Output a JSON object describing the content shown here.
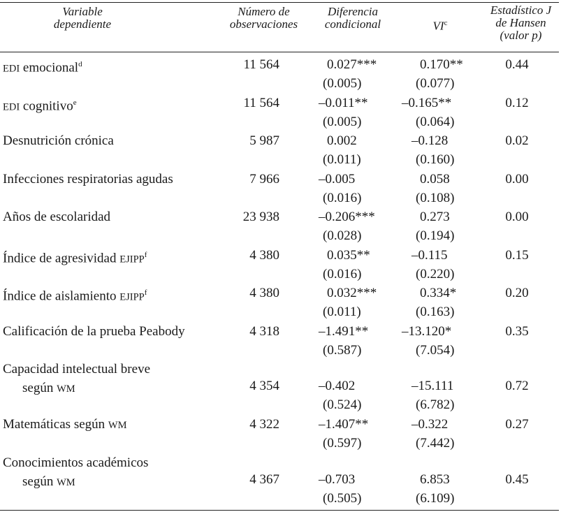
{
  "header": {
    "variable": "Variable\ndependiente",
    "observations": "Número de\nobservaciones",
    "difference": "Diferencia\ncondicional",
    "vi": "VI",
    "vi_sup": "c",
    "hansen": "Estadístico J\nde Hansen\n(valor p)"
  },
  "rows": [
    {
      "label": "EDI",
      "label_rest": " emocional",
      "sup": "d",
      "obs": "11 564",
      "dif": "0.027***",
      "dif_se": "(0.005)",
      "vi": "0.170**",
      "vi_se": "(0.077)",
      "hansen": "0.44"
    },
    {
      "label": "EDI",
      "label_rest": " cognitivo",
      "sup": "e",
      "obs": "11 564",
      "dif": "–0.011**",
      "dif_se": "(0.005)",
      "vi": "–0.165**",
      "vi_se": "(0.064)",
      "hansen": "0.12"
    },
    {
      "label": "Desnutrición crónica",
      "obs": "5 987",
      "dif": "0.002",
      "dif_se": "(0.011)",
      "vi": "–0.128",
      "vi_se": "(0.160)",
      "hansen": "0.02"
    },
    {
      "label": "Infecciones respiratorias agudas",
      "obs": "7 966",
      "dif": "–0.005",
      "dif_se": "(0.016)",
      "vi": "0.058",
      "vi_se": "(0.108)",
      "hansen": "0.00"
    },
    {
      "label": "Años de escolaridad",
      "obs": "23 938",
      "dif": "–0.206***",
      "dif_se": "(0.028)",
      "vi": "0.273",
      "vi_se": "(0.194)",
      "hansen": "0.00"
    },
    {
      "label": "Índice de agresividad ",
      "label_sc": "EJIPP",
      "sup": "f",
      "obs": "4 380",
      "dif": "0.035**",
      "dif_se": "(0.016)",
      "vi": "–0.115",
      "vi_se": "(0.220)",
      "hansen": "0.15"
    },
    {
      "label": "Índice de aislamiento ",
      "label_sc": "EJIPP",
      "sup": "f",
      "obs": "4 380",
      "dif": "0.032***",
      "dif_se": "(0.011)",
      "vi": "0.334*",
      "vi_se": "(0.163)",
      "hansen": "0.20"
    },
    {
      "label": "Calificación de la prueba Peabody",
      "obs": "4 318",
      "dif": "–1.491**",
      "dif_se": "(0.587)",
      "vi": "–13.120*",
      "vi_se": "(7.054)",
      "hansen": "0.35"
    },
    {
      "label": "Capacidad intelectual breve",
      "label2": "según ",
      "label2_sc": "WM",
      "obs": "4 354",
      "dif": "–0.402",
      "dif_se": "(0.524)",
      "vi": "–15.111",
      "vi_se": "(6.782)",
      "hansen": "0.72"
    },
    {
      "label": "Matemáticas según ",
      "label_sc": "WM",
      "obs": "4 322",
      "dif": "–1.407**",
      "dif_se": "(0.597)",
      "vi": "–0.322",
      "vi_se": "(7.442)",
      "hansen": "0.27"
    },
    {
      "label": "Conocimientos académicos",
      "label2": "según ",
      "label2_sc": "WM",
      "obs": "4 367",
      "dif": "–0.703",
      "dif_se": "(0.505)",
      "vi": "6.853",
      "vi_se": "(6.109)",
      "hansen": "0.45"
    }
  ]
}
